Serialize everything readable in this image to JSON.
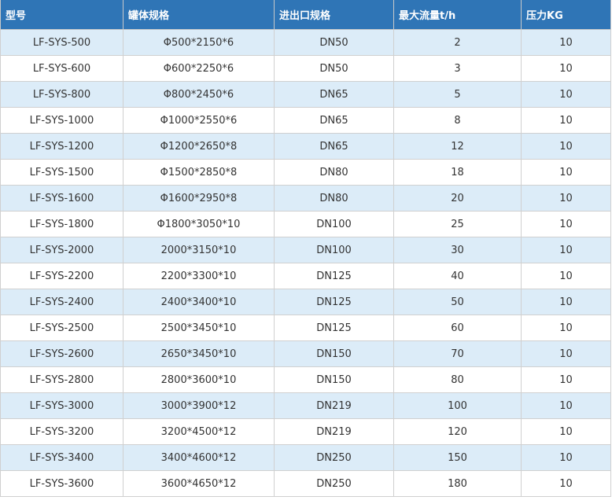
{
  "table": {
    "headers": [
      "型号",
      "罐体规格",
      "进出口规格",
      "最大流量t/h",
      "压力KG"
    ],
    "rows": [
      [
        "LF-SYS-500",
        "Φ500*2150*6",
        "DN50",
        "2",
        "10"
      ],
      [
        "LF-SYS-600",
        "Φ600*2250*6",
        "DN50",
        "3",
        "10"
      ],
      [
        "LF-SYS-800",
        "Φ800*2450*6",
        "DN65",
        "5",
        "10"
      ],
      [
        "LF-SYS-1000",
        "Φ1000*2550*6",
        "DN65",
        "8",
        "10"
      ],
      [
        "LF-SYS-1200",
        "Φ1200*2650*8",
        "DN65",
        "12",
        "10"
      ],
      [
        "LF-SYS-1500",
        "Φ1500*2850*8",
        "DN80",
        "18",
        "10"
      ],
      [
        "LF-SYS-1600",
        "Φ1600*2950*8",
        "DN80",
        "20",
        "10"
      ],
      [
        "LF-SYS-1800",
        "Φ1800*3050*10",
        "DN100",
        "25",
        "10"
      ],
      [
        "LF-SYS-2000",
        "2000*3150*10",
        "DN100",
        "30",
        "10"
      ],
      [
        "LF-SYS-2200",
        "2200*3300*10",
        "DN125",
        "40",
        "10"
      ],
      [
        "LF-SYS-2400",
        "2400*3400*10",
        "DN125",
        "50",
        "10"
      ],
      [
        "LF-SYS-2500",
        "2500*3450*10",
        "DN125",
        "60",
        "10"
      ],
      [
        "LF-SYS-2600",
        "2650*3450*10",
        "DN150",
        "70",
        "10"
      ],
      [
        "LF-SYS-2800",
        "2800*3600*10",
        "DN150",
        "80",
        "10"
      ],
      [
        "LF-SYS-3000",
        "3000*3900*12",
        "DN219",
        "100",
        "10"
      ],
      [
        "LF-SYS-3200",
        "3200*4500*12",
        "DN219",
        "120",
        "10"
      ],
      [
        "LF-SYS-3400",
        "3400*4600*12",
        "DN250",
        "150",
        "10"
      ],
      [
        "LF-SYS-3600",
        "3600*4650*12",
        "DN250",
        "180",
        "10"
      ]
    ]
  },
  "colors": {
    "header_bg": "#2f75b6",
    "header_text": "#ffffff",
    "row_alt_bg": "#dcecf8",
    "row_bg": "#ffffff"
  }
}
